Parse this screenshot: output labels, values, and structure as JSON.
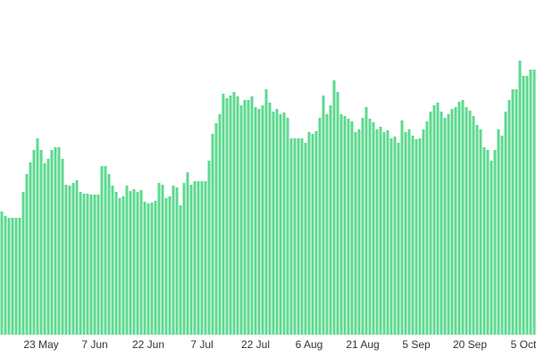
{
  "chart_data": {
    "type": "bar",
    "color": "#5dd98f",
    "categories": [
      null,
      null,
      null,
      null,
      null,
      null,
      null,
      null,
      null,
      null,
      null,
      "23 May",
      null,
      null,
      null,
      null,
      null,
      null,
      null,
      null,
      null,
      null,
      null,
      null,
      null,
      null,
      "7 Jun",
      null,
      null,
      null,
      null,
      null,
      null,
      null,
      null,
      null,
      null,
      null,
      null,
      null,
      null,
      "22 Jun",
      null,
      null,
      null,
      null,
      null,
      null,
      null,
      null,
      null,
      null,
      null,
      null,
      null,
      null,
      "7 Jul",
      null,
      null,
      null,
      null,
      null,
      null,
      null,
      null,
      null,
      null,
      null,
      null,
      null,
      null,
      "22 Jul",
      null,
      null,
      null,
      null,
      null,
      null,
      null,
      null,
      null,
      null,
      null,
      null,
      null,
      null,
      "6 Aug",
      null,
      null,
      null,
      null,
      null,
      null,
      null,
      null,
      null,
      null,
      null,
      null,
      null,
      null,
      "21 Aug",
      null,
      null,
      null,
      null,
      null,
      null,
      null,
      null,
      null,
      null,
      null,
      null,
      null,
      null,
      "5 Sep",
      null,
      null,
      null,
      null,
      null,
      null,
      null,
      null,
      null,
      null,
      null,
      null,
      null,
      null,
      "20 Sep",
      null,
      null,
      null,
      null,
      null,
      null,
      null,
      null,
      null,
      null,
      null,
      null,
      null,
      null,
      "5 Oct",
      null,
      null,
      null
    ],
    "values": [
      138,
      133,
      131,
      131,
      131,
      131,
      160,
      180,
      193,
      207,
      220,
      207,
      192,
      197,
      207,
      210,
      210,
      197,
      168,
      167,
      170,
      173,
      160,
      158,
      158,
      157,
      157,
      157,
      189,
      189,
      180,
      167,
      160,
      153,
      155,
      167,
      161,
      163,
      160,
      162,
      149,
      147,
      148,
      150,
      170,
      168,
      153,
      155,
      167,
      165,
      145,
      170,
      182,
      168,
      172,
      172,
      172,
      172,
      195,
      225,
      237,
      247,
      270,
      265,
      268,
      272,
      267,
      257,
      263,
      263,
      267,
      255,
      253,
      257,
      275,
      260,
      250,
      253,
      247,
      249,
      243,
      220,
      220,
      220,
      220,
      215,
      227,
      225,
      228,
      243,
      268,
      247,
      257,
      285,
      272,
      247,
      245,
      242,
      239,
      227,
      230,
      243,
      255,
      242,
      238,
      230,
      233,
      227,
      229,
      220,
      222,
      215,
      240,
      227,
      230,
      223,
      219,
      220,
      230,
      239,
      250,
      257,
      260,
      250,
      243,
      247,
      253,
      255,
      261,
      263,
      255,
      251,
      245,
      235,
      230,
      210,
      207,
      195,
      207,
      230,
      223,
      250,
      263,
      275,
      275,
      307,
      290,
      290,
      297,
      297
    ],
    "ylim": [
      0,
      375
    ]
  }
}
